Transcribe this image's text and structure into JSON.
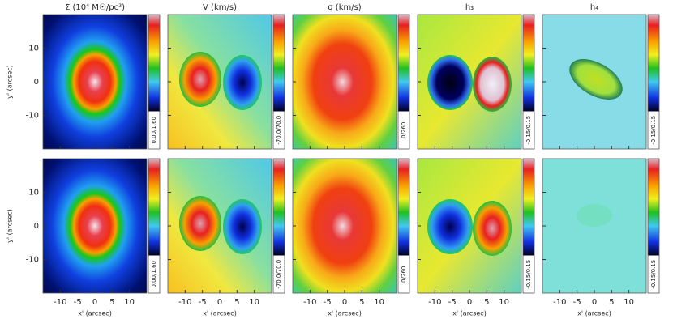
{
  "panels": [
    {
      "title": "Σ (10⁴ M☉/pc²)",
      "range": "0.00/1.60"
    },
    {
      "title": "V (km/s)",
      "range": "-70.0/70.0"
    },
    {
      "title": "σ (km/s)",
      "range": "0/260"
    },
    {
      "title": "h₃",
      "range": "-0.15/0.15"
    },
    {
      "title": "h₄",
      "range": "-0.15/0.15"
    }
  ],
  "x_axis": {
    "label": "x' (arcsec)",
    "lim": [
      -15,
      15
    ],
    "ticks": [
      -10,
      -5,
      0,
      5,
      10
    ]
  },
  "y_axis": {
    "label": "y' (arcsec)",
    "lim": [
      -20,
      20
    ],
    "ticks": [
      -10,
      0,
      10
    ]
  }
}
